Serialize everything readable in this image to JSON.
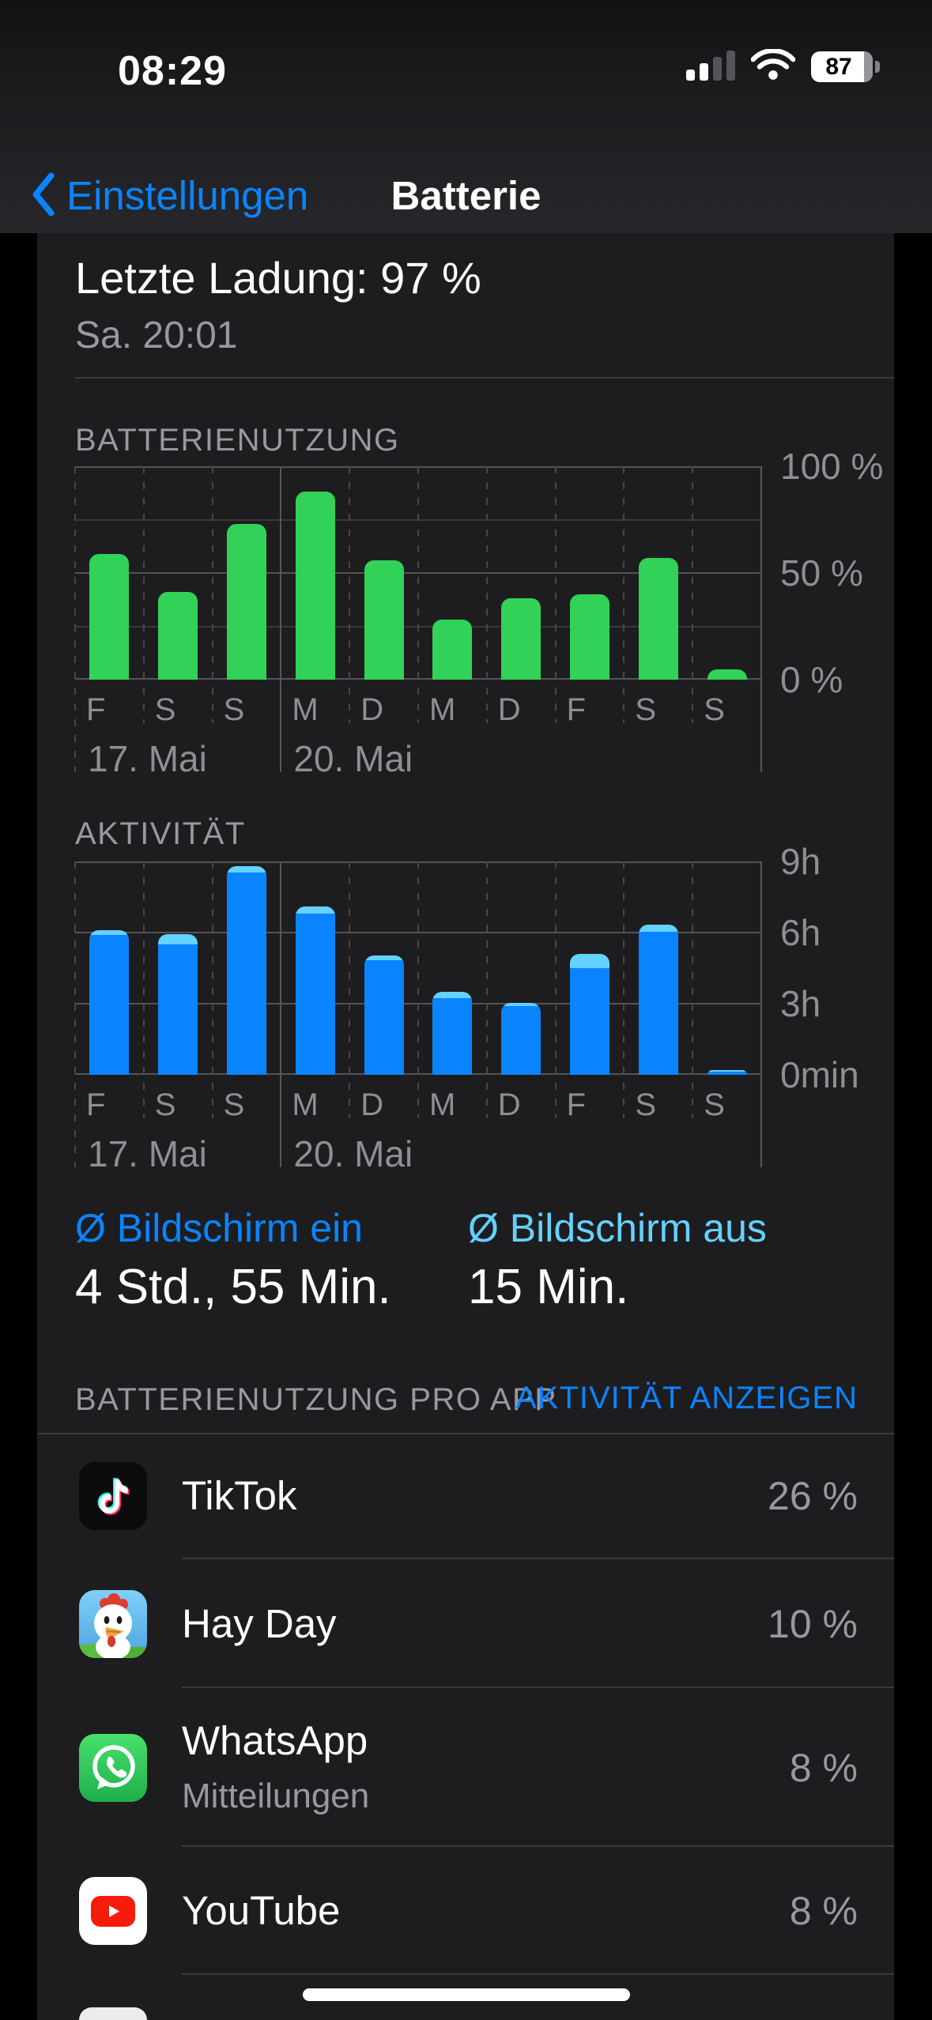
{
  "status_bar": {
    "time": "08:29",
    "battery_percent": "87",
    "signal_bars_filled": 2,
    "signal_bars_total": 4,
    "icons": [
      "cellular-signal-icon",
      "wifi-icon",
      "battery-icon"
    ]
  },
  "nav": {
    "back_label": "Einstellungen",
    "title": "Batterie"
  },
  "last_charge": {
    "title": "Letzte Ladung: 97 %",
    "subtitle": "Sa. 20:01"
  },
  "chart_data": [
    {
      "type": "bar",
      "title": "BATTERIENUTZUNG",
      "categories": [
        "F",
        "S",
        "S",
        "M",
        "D",
        "M",
        "D",
        "F",
        "S",
        "S"
      ],
      "values": [
        59,
        41,
        73,
        88,
        56,
        28,
        38,
        40,
        57,
        5
      ],
      "unit": "percent",
      "ylim": [
        0,
        100
      ],
      "yticks": [
        {
          "value": 100,
          "label": "100 %"
        },
        {
          "value": 50,
          "label": "50 %"
        },
        {
          "value": 0,
          "label": "0 %"
        }
      ],
      "gridlines_major": [
        0,
        50,
        100
      ],
      "gridlines_minor": [
        25,
        75
      ],
      "bar_color": "#32D158",
      "date_labels": [
        {
          "slot": 0,
          "text": "17. Mai"
        },
        {
          "slot": 3,
          "text": "20. Mai"
        }
      ],
      "week_boundary_slot": 3,
      "legend_position": "none",
      "grid": true
    },
    {
      "type": "bar",
      "title": "AKTIVITÄT",
      "categories": [
        "F",
        "S",
        "S",
        "M",
        "D",
        "M",
        "D",
        "F",
        "S",
        "S"
      ],
      "series": [
        {
          "name": "bildschirm-ein",
          "color": "#0A84FF",
          "values": [
            5.9,
            5.5,
            8.55,
            6.8,
            4.85,
            3.25,
            2.9,
            4.5,
            6.05,
            0.15
          ]
        },
        {
          "name": "bildschirm-aus",
          "color": "#64D2FF",
          "values": [
            0.2,
            0.45,
            0.25,
            0.3,
            0.17,
            0.25,
            0.15,
            0.6,
            0.3,
            0.05
          ]
        }
      ],
      "unit": "hours",
      "ylim": [
        0,
        9
      ],
      "yticks": [
        {
          "value": 9,
          "label": "9h"
        },
        {
          "value": 6,
          "label": "6h"
        },
        {
          "value": 3,
          "label": "3h"
        },
        {
          "value": 0,
          "label": "0min"
        }
      ],
      "gridlines_major": [
        0,
        3,
        6,
        9
      ],
      "gridlines_minor": [],
      "date_labels": [
        {
          "slot": 0,
          "text": "17. Mai"
        },
        {
          "slot": 3,
          "text": "20. Mai"
        }
      ],
      "week_boundary_slot": 3,
      "legend_position": "none",
      "grid": true
    }
  ],
  "averages": {
    "screen_on_label": "Ø Bildschirm ein",
    "screen_on_value": "4 Std., 55 Min.",
    "screen_on_color": "#0A84FF",
    "screen_off_label": "Ø Bildschirm aus",
    "screen_off_value": "15 Min.",
    "screen_off_color": "#64D2FF"
  },
  "apps_section": {
    "header": "BATTERIENUTZUNG PRO APP",
    "action": "AKTIVITÄT ANZEIGEN",
    "apps": [
      {
        "name": "TikTok",
        "percent": "26 %",
        "icon": "tiktok-icon"
      },
      {
        "name": "Hay Day",
        "percent": "10 %",
        "icon": "hayday-icon"
      },
      {
        "name": "WhatsApp",
        "subtitle": "Mitteilungen",
        "percent": "8 %",
        "icon": "whatsapp-icon"
      },
      {
        "name": "YouTube",
        "percent": "8 %",
        "icon": "youtube-icon"
      }
    ]
  },
  "colors": {
    "accent_blue": "#0A84FF",
    "light_blue": "#64D2FF",
    "green": "#32D158",
    "panel_bg": "#1D1D1F",
    "separator": "#3A3A3C",
    "secondary_text": "#98989F"
  }
}
